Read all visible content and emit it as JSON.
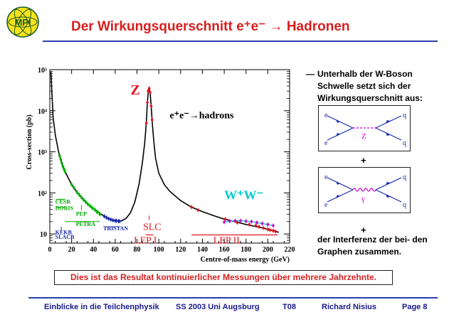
{
  "header": {
    "title": "Der Wirkungsquerschnitt e⁺e⁻ → Hadronen",
    "logo_text": "MPI"
  },
  "chart_data": {
    "type": "line",
    "xlabel": "Centre-of-mass energy (GeV)",
    "ylabel": "Cross-section (pb)",
    "xlim": [
      0,
      220
    ],
    "ylim": [
      6,
      100000
    ],
    "yscale": "log",
    "x_ticks": [
      "0",
      "20",
      "40",
      "60",
      "80",
      "100",
      "120",
      "140",
      "160",
      "180",
      "200",
      "220"
    ],
    "y_ticks": [
      {
        "value": 10,
        "label": "10"
      },
      {
        "value": 100,
        "label": "10²"
      },
      {
        "value": 1000,
        "label": "10³"
      },
      {
        "value": 10000,
        "label": "10⁴"
      },
      {
        "value": 100000,
        "label": "10⁵"
      }
    ],
    "curve": {
      "x": [
        1,
        3,
        5,
        8,
        10,
        14,
        20,
        25,
        30,
        35,
        40,
        45,
        50,
        55,
        60,
        63,
        66,
        70,
        74,
        78,
        82,
        85,
        87,
        88.5,
        89.5,
        90.5,
        91.2,
        92,
        93,
        94,
        95.5,
        97,
        100,
        105,
        110,
        120,
        130,
        140,
        150,
        160,
        170,
        180,
        190,
        200,
        210
      ],
      "y": [
        90000,
        7000,
        2600,
        1000,
        650,
        330,
        160,
        103,
        72,
        53,
        41,
        33,
        27,
        23,
        21,
        20.5,
        21,
        24,
        33,
        60,
        170,
        560,
        1600,
        5000,
        16000,
        32000,
        35000,
        28000,
        13000,
        5000,
        1700,
        700,
        300,
        160,
        110,
        65,
        45,
        35,
        28,
        23,
        20,
        17,
        15,
        13,
        11
      ]
    },
    "data_points": {
      "cesr_doris": {
        "x": [
          9,
          10,
          11,
          12,
          13,
          14
        ],
        "y": [
          800,
          650,
          530,
          440,
          380,
          330
        ],
        "color": "#00aa00"
      },
      "pep_petra": {
        "x": [
          14,
          20,
          22,
          25,
          27,
          29,
          31,
          33,
          35,
          37,
          39,
          41,
          43,
          44,
          46
        ],
        "y": [
          330,
          160,
          135,
          103,
          90,
          78,
          68,
          60,
          53,
          48,
          43,
          40,
          35,
          34,
          30
        ],
        "color": "#00bb00"
      },
      "tristan": {
        "x": [
          50,
          52,
          54,
          56,
          58,
          60,
          61,
          63,
          64
        ],
        "y": [
          27,
          25,
          23.5,
          22.5,
          21.5,
          21,
          21,
          20.5,
          20.5
        ],
        "color": "#1a2aaa"
      },
      "lep1": {
        "x": [
          88.5,
          89.5,
          90.2,
          91.2,
          92,
          93,
          93.8
        ],
        "y": [
          5000,
          16000,
          30000,
          35000,
          28000,
          13000,
          6000
        ],
        "color": "#e0141e"
      },
      "lep2": {
        "x": [
          130,
          136,
          161,
          172,
          183,
          189,
          192,
          196,
          200,
          202,
          205,
          207
        ],
        "y": [
          45,
          38,
          23,
          19,
          17,
          16,
          15,
          14,
          13,
          12.5,
          12,
          11.5
        ],
        "color": "#e0141e"
      },
      "ww": {
        "x": [
          160,
          165,
          170,
          175,
          180,
          185,
          190,
          195,
          200,
          205
        ],
        "y": [
          19.5,
          20.5,
          21,
          21,
          20.5,
          20,
          19,
          18,
          17,
          16
        ],
        "color": "#cc00cc"
      }
    },
    "annotations": {
      "z": "Z",
      "process": "e⁺e⁻→hadrons",
      "ww": "W⁺W⁻",
      "cesr": "CESR",
      "doris": "DORIS",
      "pep": "PEP",
      "petra": "PETRA",
      "tristan": "TRISTAN",
      "kekb": "KEKB",
      "slacb": "SLACB",
      "slc": "SLC",
      "lep1": "LEP I",
      "lep2": "LEP II"
    },
    "colors": {
      "red": "#e0141e",
      "green": "#00aa00",
      "blue": "#1a2aaa",
      "cyan": "#00cccc",
      "curve": "#000000"
    }
  },
  "right_panel": {
    "bullet_dash": "—",
    "bullet_text": "Unterhalb der W-Boson Schwelle setzt sich der Wirkungsquerschnitt aus:",
    "diagram1": {
      "e_in": "e",
      "e_out": "e",
      "q1": "q",
      "q2": "q",
      "boson": "Z"
    },
    "plus": "+",
    "diagram2": {
      "e_in": "e",
      "e_out": "e",
      "q1": "q",
      "q2": "q",
      "boson": "γ"
    },
    "conclusion": "der Interferenz der bei- den Graphen zusammen."
  },
  "result": "Dies ist das Resultat kontinuierlicher Messungen über mehrere Jahrzehnte.",
  "footer": {
    "course": "Einblicke in die Teilchenphysik",
    "term": "SS 2003 Uni Augsburg",
    "code": "T08",
    "author": "Richard Nisius",
    "page": "Page 8"
  }
}
